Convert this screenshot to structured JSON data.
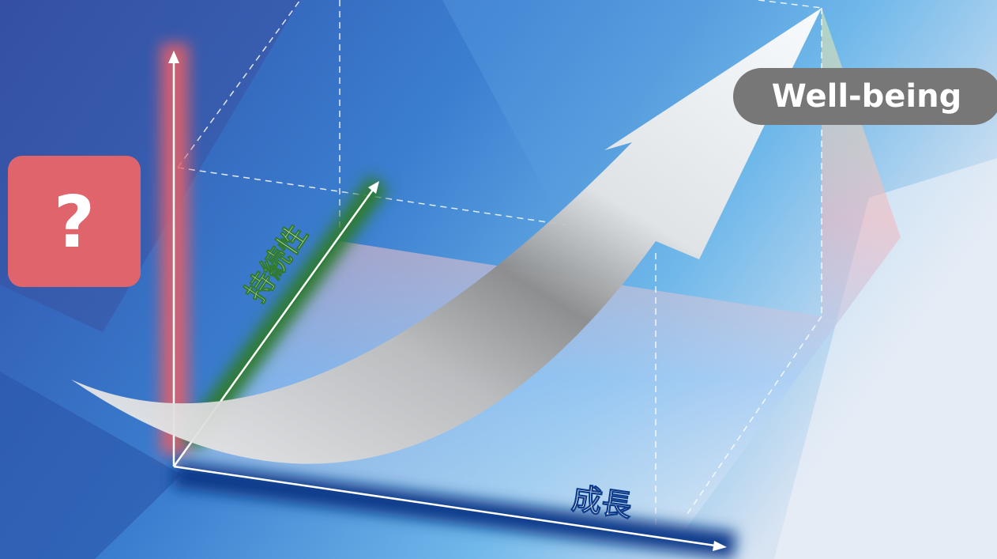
{
  "labels": {
    "question": "?",
    "sustainability": "持続性",
    "growth": "成長",
    "wellbeing": "Well-being"
  }
}
